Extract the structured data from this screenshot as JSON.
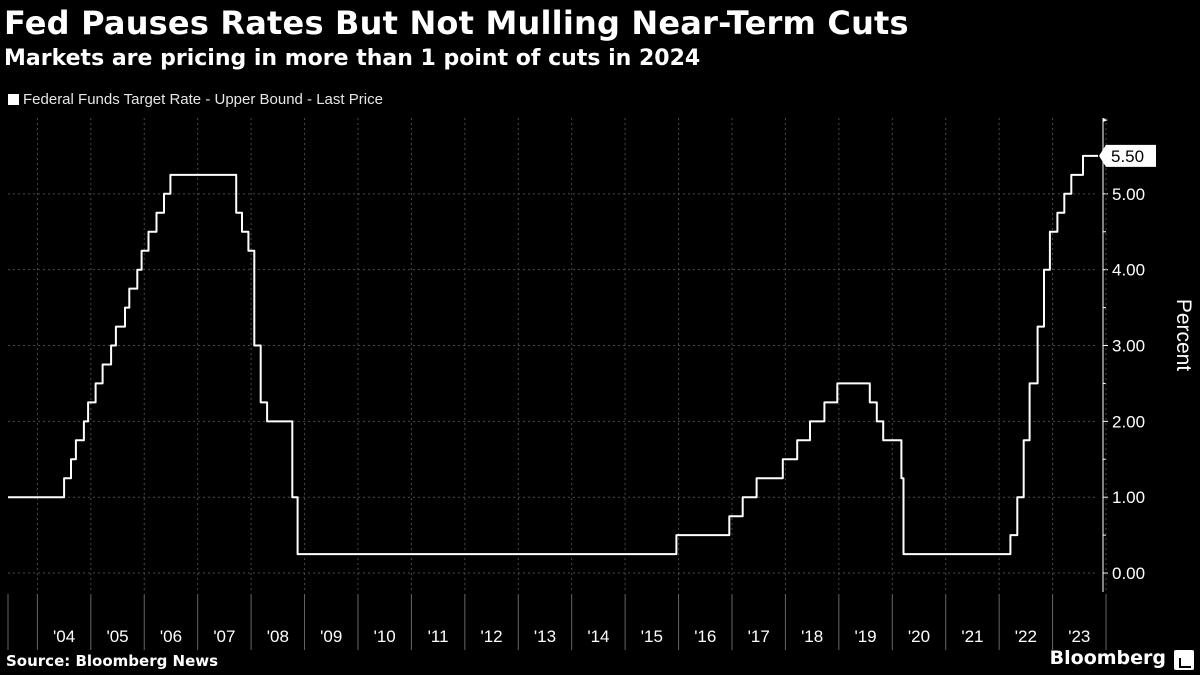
{
  "header": {
    "title": "Fed Pauses Rates But Not Mulling Near-Term Cuts",
    "subtitle": "Markets are pricing in more than 1 point of cuts in 2024"
  },
  "footer": {
    "source": "Source: Bloomberg News",
    "brand": "Bloomberg"
  },
  "colors": {
    "background": "#000000",
    "line": "#ffffff",
    "grid": "#4a4a4a"
  },
  "chart_data": {
    "type": "line",
    "title": "Fed Pauses Rates But Not Mulling Near-Term Cuts",
    "subtitle": "Markets are pricing in more than 1 point of cuts in 2024",
    "xlabel": "",
    "ylabel": "Percent",
    "xlim": [
      2003.45,
      2023.85
    ],
    "ylim": [
      -0.25,
      6.0
    ],
    "y_ticks": [
      0,
      1,
      2,
      3,
      4,
      5
    ],
    "y_tick_labels": [
      "0.00",
      "1.00",
      "2.00",
      "3.00",
      "4.00",
      "5.00"
    ],
    "x_tick_labels": [
      "'04",
      "'05",
      "'06",
      "'07",
      "'08",
      "'09",
      "'10",
      "'11",
      "'12",
      "'13",
      "'14",
      "'15",
      "'16",
      "'17",
      "'18",
      "'19",
      "'20",
      "'21",
      "'22",
      "'23"
    ],
    "legend": [
      "Federal Funds Target Rate - Upper Bound - Last Price"
    ],
    "last_value_label": "5.50",
    "grid": true,
    "series": [
      {
        "name": "Federal Funds Target Rate - Upper Bound - Last Price",
        "points": [
          [
            2003.45,
            1.0
          ],
          [
            2004.5,
            1.0
          ],
          [
            2004.5,
            1.25
          ],
          [
            2004.63,
            1.25
          ],
          [
            2004.63,
            1.5
          ],
          [
            2004.72,
            1.5
          ],
          [
            2004.72,
            1.75
          ],
          [
            2004.87,
            1.75
          ],
          [
            2004.87,
            2.0
          ],
          [
            2004.95,
            2.0
          ],
          [
            2004.95,
            2.25
          ],
          [
            2005.09,
            2.25
          ],
          [
            2005.09,
            2.5
          ],
          [
            2005.22,
            2.5
          ],
          [
            2005.22,
            2.75
          ],
          [
            2005.38,
            2.75
          ],
          [
            2005.38,
            3.0
          ],
          [
            2005.47,
            3.0
          ],
          [
            2005.47,
            3.25
          ],
          [
            2005.64,
            3.25
          ],
          [
            2005.64,
            3.5
          ],
          [
            2005.72,
            3.5
          ],
          [
            2005.72,
            3.75
          ],
          [
            2005.87,
            3.75
          ],
          [
            2005.87,
            4.0
          ],
          [
            2005.95,
            4.0
          ],
          [
            2005.95,
            4.25
          ],
          [
            2006.08,
            4.25
          ],
          [
            2006.08,
            4.5
          ],
          [
            2006.23,
            4.5
          ],
          [
            2006.23,
            4.75
          ],
          [
            2006.37,
            4.75
          ],
          [
            2006.37,
            5.0
          ],
          [
            2006.49,
            5.0
          ],
          [
            2006.49,
            5.25
          ],
          [
            2007.72,
            5.25
          ],
          [
            2007.72,
            4.75
          ],
          [
            2007.83,
            4.75
          ],
          [
            2007.83,
            4.5
          ],
          [
            2007.95,
            4.5
          ],
          [
            2007.95,
            4.25
          ],
          [
            2008.06,
            4.25
          ],
          [
            2008.06,
            3.0
          ],
          [
            2008.18,
            3.0
          ],
          [
            2008.18,
            2.25
          ],
          [
            2008.3,
            2.25
          ],
          [
            2008.3,
            2.0
          ],
          [
            2008.77,
            2.0
          ],
          [
            2008.77,
            1.0
          ],
          [
            2008.87,
            1.0
          ],
          [
            2008.87,
            0.25
          ],
          [
            2015.96,
            0.25
          ],
          [
            2015.96,
            0.5
          ],
          [
            2016.95,
            0.5
          ],
          [
            2016.95,
            0.75
          ],
          [
            2017.2,
            0.75
          ],
          [
            2017.2,
            1.0
          ],
          [
            2017.46,
            1.0
          ],
          [
            2017.46,
            1.25
          ],
          [
            2017.95,
            1.25
          ],
          [
            2017.95,
            1.5
          ],
          [
            2018.22,
            1.5
          ],
          [
            2018.22,
            1.75
          ],
          [
            2018.46,
            1.75
          ],
          [
            2018.46,
            2.0
          ],
          [
            2018.73,
            2.0
          ],
          [
            2018.73,
            2.25
          ],
          [
            2018.97,
            2.25
          ],
          [
            2018.97,
            2.5
          ],
          [
            2019.58,
            2.5
          ],
          [
            2019.58,
            2.25
          ],
          [
            2019.71,
            2.25
          ],
          [
            2019.71,
            2.0
          ],
          [
            2019.83,
            2.0
          ],
          [
            2019.83,
            1.75
          ],
          [
            2020.17,
            1.75
          ],
          [
            2020.17,
            1.25
          ],
          [
            2020.21,
            1.25
          ],
          [
            2020.21,
            0.25
          ],
          [
            2022.21,
            0.25
          ],
          [
            2022.21,
            0.5
          ],
          [
            2022.34,
            0.5
          ],
          [
            2022.34,
            1.0
          ],
          [
            2022.46,
            1.0
          ],
          [
            2022.46,
            1.75
          ],
          [
            2022.57,
            1.75
          ],
          [
            2022.57,
            2.5
          ],
          [
            2022.72,
            2.5
          ],
          [
            2022.72,
            3.25
          ],
          [
            2022.84,
            3.25
          ],
          [
            2022.84,
            4.0
          ],
          [
            2022.95,
            4.0
          ],
          [
            2022.95,
            4.5
          ],
          [
            2023.09,
            4.5
          ],
          [
            2023.09,
            4.75
          ],
          [
            2023.22,
            4.75
          ],
          [
            2023.22,
            5.0
          ],
          [
            2023.35,
            5.0
          ],
          [
            2023.35,
            5.25
          ],
          [
            2023.57,
            5.25
          ],
          [
            2023.57,
            5.5
          ],
          [
            2023.85,
            5.5
          ]
        ]
      }
    ]
  }
}
